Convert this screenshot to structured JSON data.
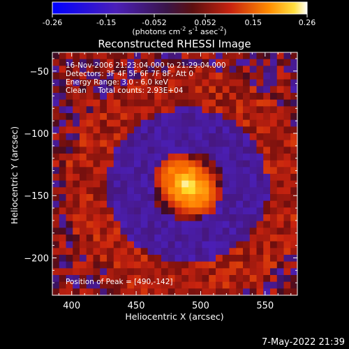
{
  "app": {
    "footer_timestamp": "7-May-2022 21:39"
  },
  "colorbar": {
    "ticks": [
      "-0.26",
      "-0.15",
      "-0.052",
      "0.052",
      "0.15",
      "0.26"
    ],
    "unit_pre": "(photons cm",
    "unit_sup1": "-2",
    "unit_mid": " s",
    "unit_sup2": "-1",
    "unit_mid2": " asec",
    "unit_sup3": "-2",
    "unit_post": ")",
    "min": -0.26,
    "max": 0.26
  },
  "chart_data": {
    "type": "heatmap",
    "title": "Reconstructed RHESSI Image",
    "xlabel": "Heliocentric X (arcsec)",
    "ylabel": "Heliocentric Y (arcsec)",
    "xlim": [
      385,
      575
    ],
    "ylim": [
      -230,
      -35
    ],
    "xticks": [
      400,
      450,
      500,
      550
    ],
    "yticks": [
      -50,
      -100,
      -150,
      -200
    ],
    "annotations": [
      "16-Nov-2006 21:23:04.000 to 21:29:04.000",
      "Detectors: 3F 4F 5F 6F 7F 8F, Att 0",
      "Energy Range: 3.0 - 6.0 keV",
      "Clean     Total counts: 2.93E+04",
      "Position of Peak = [490,-142]"
    ],
    "peak": {
      "x": 490,
      "y": -142
    },
    "grid": false
  },
  "colors": {
    "background": "#000000",
    "colormap_stops": [
      "#0000ff",
      "#5d2fbf",
      "#4a1f7a",
      "#2a1238",
      "#7a0c0c",
      "#d42a16",
      "#ff7a00",
      "#ffd000",
      "#ffffff"
    ]
  }
}
